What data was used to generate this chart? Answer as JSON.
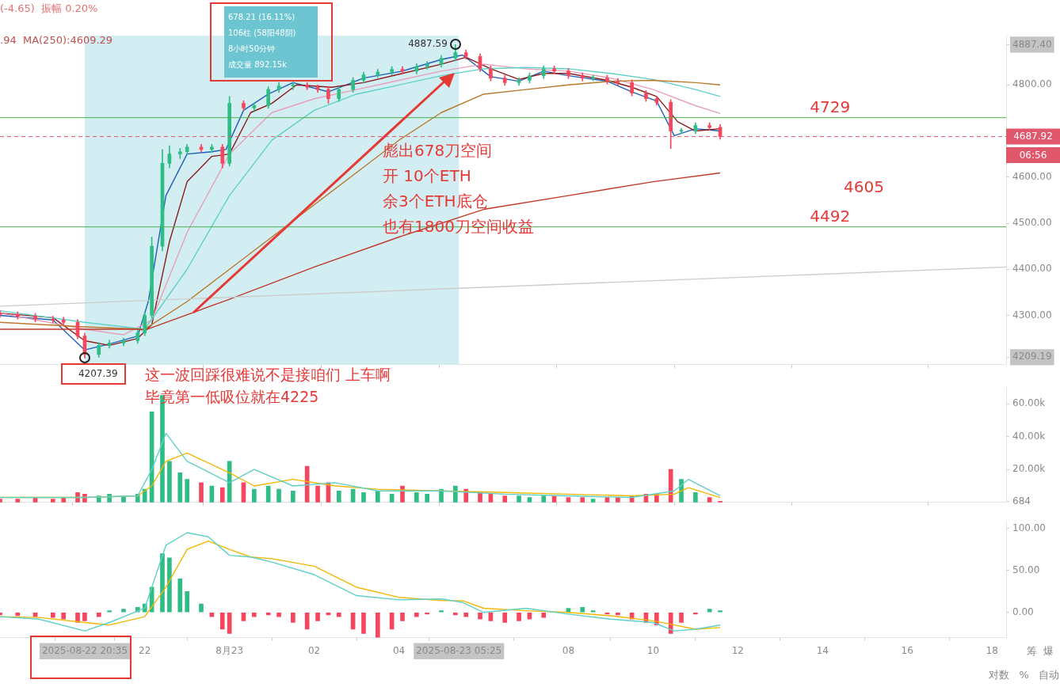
{
  "chart_data": [
    {
      "type": "candlestick",
      "xlim": [
        "2025-08-22T18:35",
        "2025-08-23T18:20"
      ],
      "ylim": [
        4193,
        4907
      ],
      "tick_labels": "y",
      "grid": false,
      "legend": false,
      "yticks": [
        {
          "value": 4209.19,
          "label": "4209.19"
        },
        {
          "value": 4300,
          "label": "4300.00"
        },
        {
          "value": 4400,
          "label": "4400.00"
        },
        {
          "value": 4500,
          "label": "4500.00"
        },
        {
          "value": 4600,
          "label": "4600.00"
        },
        {
          "value": 4800,
          "label": "4800.00"
        },
        {
          "value": 4887.4,
          "label": "4887.40"
        }
      ],
      "x": [
        "2025-08-22T18:35",
        "2025-08-22T19:00",
        "2025-08-22T19:25",
        "2025-08-22T19:50",
        "2025-08-22T20:05",
        "2025-08-22T20:25",
        "2025-08-22T20:35",
        "2025-08-22T20:55",
        "2025-08-22T21:10",
        "2025-08-22T21:30",
        "2025-08-22T21:50",
        "2025-08-22T22:00",
        "2025-08-22T22:10",
        "2025-08-22T22:25",
        "2025-08-22T22:35",
        "2025-08-22T22:50",
        "2025-08-22T23:00",
        "2025-08-22T23:20",
        "2025-08-22T23:35",
        "2025-08-22T23:50",
        "2025-08-23T00:00",
        "2025-08-23T00:20",
        "2025-08-23T00:35",
        "2025-08-23T00:55",
        "2025-08-23T01:10",
        "2025-08-23T01:30",
        "2025-08-23T01:50",
        "2025-08-23T02:05",
        "2025-08-23T02:20",
        "2025-08-23T02:35",
        "2025-08-23T02:55",
        "2025-08-23T03:10",
        "2025-08-23T03:30",
        "2025-08-23T03:50",
        "2025-08-23T04:05",
        "2025-08-23T04:25",
        "2025-08-23T04:40",
        "2025-08-23T05:00",
        "2025-08-23T05:20",
        "2025-08-23T05:35",
        "2025-08-23T05:55",
        "2025-08-23T06:10",
        "2025-08-23T06:30",
        "2025-08-23T06:50",
        "2025-08-23T07:05",
        "2025-08-23T07:25",
        "2025-08-23T07:40",
        "2025-08-23T08:00",
        "2025-08-23T08:20",
        "2025-08-23T08:35",
        "2025-08-23T08:55",
        "2025-08-23T09:10",
        "2025-08-23T09:30",
        "2025-08-23T09:50",
        "2025-08-23T10:05",
        "2025-08-23T10:25",
        "2025-08-23T10:40",
        "2025-08-23T11:00",
        "2025-08-23T11:20",
        "2025-08-23T11:35"
      ],
      "ohlc": [
        [
          4305,
          4311,
          4296,
          4302
        ],
        [
          4302,
          4308,
          4292,
          4298
        ],
        [
          4298,
          4304,
          4286,
          4292
        ],
        [
          4292,
          4298,
          4284,
          4290
        ],
        [
          4290,
          4296,
          4279,
          4285
        ],
        [
          4285,
          4291,
          4249,
          4255
        ],
        [
          4255,
          4261,
          4207.39,
          4215
        ],
        [
          4215,
          4241,
          4209,
          4235
        ],
        [
          4235,
          4246,
          4229,
          4240
        ],
        [
          4240,
          4251,
          4234,
          4245
        ],
        [
          4245,
          4268,
          4239,
          4262
        ],
        [
          4262,
          4306,
          4256,
          4300
        ],
        [
          4300,
          4470,
          4294,
          4450
        ],
        [
          4450,
          4660,
          4440,
          4630
        ],
        [
          4630,
          4668,
          4620,
          4650
        ],
        [
          4650,
          4662,
          4640,
          4655
        ],
        [
          4655,
          4671,
          4649,
          4665
        ],
        [
          4665,
          4671,
          4654,
          4660
        ],
        [
          4660,
          4671,
          4654,
          4665
        ],
        [
          4665,
          4671,
          4620,
          4630
        ],
        [
          4630,
          4775,
          4624,
          4760
        ],
        [
          4760,
          4766,
          4744,
          4750
        ],
        [
          4750,
          4761,
          4744,
          4755
        ],
        [
          4755,
          4796,
          4749,
          4790
        ],
        [
          4790,
          4805,
          4784,
          4798
        ],
        [
          4798,
          4806,
          4790,
          4800
        ],
        [
          4800,
          4805,
          4790,
          4795
        ],
        [
          4795,
          4800,
          4784,
          4790
        ],
        [
          4790,
          4796,
          4760,
          4770
        ],
        [
          4770,
          4796,
          4764,
          4790
        ],
        [
          4790,
          4816,
          4784,
          4810
        ],
        [
          4810,
          4828,
          4804,
          4822
        ],
        [
          4822,
          4834,
          4816,
          4828
        ],
        [
          4828,
          4840,
          4822,
          4834
        ],
        [
          4834,
          4840,
          4824,
          4830
        ],
        [
          4830,
          4846,
          4824,
          4840
        ],
        [
          4840,
          4851,
          4834,
          4845
        ],
        [
          4845,
          4864,
          4839,
          4858
        ],
        [
          4858,
          4887.59,
          4852,
          4870
        ],
        [
          4870,
          4876,
          4856,
          4862
        ],
        [
          4862,
          4868,
          4829,
          4835
        ],
        [
          4835,
          4841,
          4809,
          4815
        ],
        [
          4815,
          4821,
          4799,
          4805
        ],
        [
          4805,
          4816,
          4799,
          4810
        ],
        [
          4810,
          4826,
          4804,
          4820
        ],
        [
          4820,
          4841,
          4814,
          4835
        ],
        [
          4835,
          4841,
          4824,
          4830
        ],
        [
          4830,
          4836,
          4814,
          4820
        ],
        [
          4820,
          4826,
          4809,
          4815
        ],
        [
          4815,
          4821,
          4809,
          4815
        ],
        [
          4815,
          4821,
          4802,
          4808
        ],
        [
          4808,
          4814,
          4799,
          4805
        ],
        [
          4805,
          4811,
          4776,
          4782
        ],
        [
          4782,
          4788,
          4764,
          4770
        ],
        [
          4770,
          4776,
          4756,
          4762
        ],
        [
          4762,
          4768,
          4662,
          4700
        ],
        [
          4700,
          4706,
          4694,
          4700
        ],
        [
          4700,
          4718,
          4694,
          4712
        ],
        [
          4712,
          4718,
          4702,
          4708
        ],
        [
          4708,
          4714,
          4682,
          4688
        ]
      ],
      "colors": [
        "#f6465d",
        "#f6465d",
        "#f6465d",
        "#f6465d",
        "#f6465d",
        "#f6465d",
        "#f6465d",
        "#2ebd85",
        "#2ebd85",
        "#2ebd85",
        "#2ebd85",
        "#2ebd85",
        "#2ebd85",
        "#2ebd85",
        "#2ebd85",
        "#2ebd85",
        "#2ebd85",
        "#f6465d",
        "#2ebd85",
        "#f6465d",
        "#2ebd85",
        "#f6465d",
        "#2ebd85",
        "#2ebd85",
        "#2ebd85",
        "#2ebd85",
        "#f6465d",
        "#f6465d",
        "#f6465d",
        "#2ebd85",
        "#2ebd85",
        "#2ebd85",
        "#2ebd85",
        "#2ebd85",
        "#f6465d",
        "#2ebd85",
        "#2ebd85",
        "#2ebd85",
        "#2ebd85",
        "#f6465d",
        "#f6465d",
        "#f6465d",
        "#f6465d",
        "#2ebd85",
        "#2ebd85",
        "#2ebd85",
        "#f6465d",
        "#f6465d",
        "#f6465d",
        "#2ebd85",
        "#f6465d",
        "#f6465d",
        "#f6465d",
        "#f6465d",
        "#f6465d",
        "#f6465d",
        "#2ebd85",
        "#2ebd85",
        "#f6465d",
        "#f6465d"
      ],
      "series": [
        {
          "type": "line",
          "color": "#cccccc",
          "x": [
            "2025-08-22T18:35",
            "2025-08-23T18:20"
          ],
          "values": [
            4320,
            4405
          ]
        },
        {
          "type": "line",
          "color": "#c0392b",
          "x": [
            "2025-08-22T18:35",
            "2025-08-22T21:50",
            "2025-08-22T22:00",
            "2025-08-23T00:00",
            "2025-08-23T02:00",
            "2025-08-23T04:00",
            "2025-08-23T06:00",
            "2025-08-23T08:00",
            "2025-08-23T10:00",
            "2025-08-23T11:35"
          ],
          "values": [
            4270,
            4270,
            4268,
            4335,
            4405,
            4470,
            4530,
            4560,
            4590,
            4609
          ]
        },
        {
          "type": "line",
          "color": "#b8792a",
          "x": [
            "2025-08-22T18:35",
            "2025-08-22T20:35",
            "2025-08-22T22:00",
            "2025-08-22T23:00",
            "2025-08-23T00:00",
            "2025-08-23T01:00",
            "2025-08-23T02:00",
            "2025-08-23T03:00",
            "2025-08-23T04:00",
            "2025-08-23T05:00",
            "2025-08-23T06:00",
            "2025-08-23T07:00",
            "2025-08-23T08:00",
            "2025-08-23T09:00",
            "2025-08-23T10:00",
            "2025-08-23T11:00",
            "2025-08-23T11:35"
          ],
          "values": [
            4285,
            4275,
            4270,
            4330,
            4400,
            4470,
            4540,
            4610,
            4680,
            4740,
            4780,
            4790,
            4800,
            4808,
            4810,
            4805,
            4800
          ]
        },
        {
          "type": "line",
          "color": "#5fd0c8",
          "x": [
            "2025-08-22T18:35",
            "2025-08-22T20:35",
            "2025-08-22T22:00",
            "2025-08-22T23:00",
            "2025-08-23T00:00",
            "2025-08-23T01:00",
            "2025-08-23T02:00",
            "2025-08-23T03:00",
            "2025-08-23T04:00",
            "2025-08-23T05:00",
            "2025-08-23T06:00",
            "2025-08-23T07:00",
            "2025-08-23T08:00",
            "2025-08-23T09:00",
            "2025-08-23T10:00",
            "2025-08-23T11:00",
            "2025-08-23T11:35"
          ],
          "values": [
            4310,
            4285,
            4270,
            4400,
            4560,
            4680,
            4745,
            4780,
            4800,
            4820,
            4835,
            4838,
            4835,
            4825,
            4812,
            4790,
            4775
          ]
        },
        {
          "type": "line",
          "color": "#e8a0b8",
          "x": [
            "2025-08-22T18:35",
            "2025-08-22T20:35",
            "2025-08-22T21:30",
            "2025-08-22T22:10",
            "2025-08-22T23:00",
            "2025-08-23T00:00",
            "2025-08-23T01:00",
            "2025-08-23T02:00",
            "2025-08-23T03:00",
            "2025-08-23T04:00",
            "2025-08-23T05:00",
            "2025-08-23T06:00",
            "2025-08-23T07:00",
            "2025-08-23T08:00",
            "2025-08-23T09:00",
            "2025-08-23T10:00",
            "2025-08-23T11:00",
            "2025-08-23T11:35"
          ],
          "values": [
            4305,
            4270,
            4258,
            4290,
            4480,
            4650,
            4740,
            4770,
            4790,
            4810,
            4830,
            4845,
            4835,
            4830,
            4815,
            4790,
            4755,
            4738
          ]
        },
        {
          "type": "line",
          "color": "#8b1a1a",
          "x": [
            "2025-08-22T18:35",
            "2025-08-22T19:50",
            "2025-08-22T20:35",
            "2025-08-22T21:10",
            "2025-08-22T21:50",
            "2025-08-22T22:10",
            "2025-08-22T22:35",
            "2025-08-22T23:00",
            "2025-08-22T23:35",
            "2025-08-23T00:00",
            "2025-08-23T00:30",
            "2025-08-23T01:00",
            "2025-08-23T01:35",
            "2025-08-23T02:25",
            "2025-08-23T03:10",
            "2025-08-23T04:05",
            "2025-08-23T05:00",
            "2025-08-23T05:35",
            "2025-08-23T06:10",
            "2025-08-23T06:50",
            "2025-08-23T07:25",
            "2025-08-23T08:00",
            "2025-08-23T08:55",
            "2025-08-23T09:30",
            "2025-08-23T10:05",
            "2025-08-23T10:35",
            "2025-08-23T11:00",
            "2025-08-23T11:35"
          ],
          "values": [
            4305,
            4295,
            4245,
            4235,
            4250,
            4280,
            4460,
            4590,
            4645,
            4650,
            4740,
            4760,
            4800,
            4795,
            4805,
            4825,
            4845,
            4860,
            4835,
            4812,
            4825,
            4825,
            4810,
            4795,
            4775,
            4720,
            4700,
            4705
          ]
        },
        {
          "type": "line",
          "color": "#1f5fbf",
          "x": [
            "2025-08-22T18:35",
            "2025-08-22T19:50",
            "2025-08-22T20:35",
            "2025-08-22T21:10",
            "2025-08-22T21:50",
            "2025-08-22T22:05",
            "2025-08-22T22:30",
            "2025-08-22T23:00",
            "2025-08-22T23:35",
            "2025-08-22T23:55",
            "2025-08-23T00:20",
            "2025-08-23T00:55",
            "2025-08-23T01:30",
            "2025-08-23T02:20",
            "2025-08-23T03:10",
            "2025-08-23T04:05",
            "2025-08-23T05:00",
            "2025-08-23T05:30",
            "2025-08-23T06:10",
            "2025-08-23T06:50",
            "2025-08-23T07:25",
            "2025-08-23T08:00",
            "2025-08-23T08:55",
            "2025-08-23T09:30",
            "2025-08-23T10:05",
            "2025-08-23T10:30",
            "2025-08-23T11:00",
            "2025-08-23T11:35"
          ],
          "values": [
            4300,
            4290,
            4225,
            4238,
            4255,
            4330,
            4560,
            4650,
            4655,
            4660,
            4745,
            4780,
            4805,
            4785,
            4815,
            4830,
            4855,
            4865,
            4818,
            4808,
            4830,
            4820,
            4808,
            4785,
            4765,
            4690,
            4705,
            4700
          ]
        }
      ],
      "bands": [
        {
          "axis": "x",
          "from": "2025-08-22T20:35",
          "to": "2025-08-23T05:25",
          "color": "#d3eef2"
        }
      ],
      "ref_lines": [
        {
          "axis": "y",
          "value": 4729,
          "label": "4729",
          "color": "#4caf50",
          "line_style": "solid"
        },
        {
          "axis": "y",
          "value": 4492,
          "label": "4492",
          "color": "#4caf50",
          "line_style": "solid"
        },
        {
          "axis": "y",
          "value": 4687.92,
          "label": "4687.92",
          "color": "#e0566a",
          "line_style": "dashed"
        }
      ],
      "annotations": [
        "(-4.65)  振幅 0.20%",
        ".94  MA(250):4609.29",
        "678.21 (16.11%)",
        "106柱 (58阳48阴)",
        "8小时50分钟",
        "成交量 892.15k",
        "彪出678刀空间",
        "开 10个ETH",
        "余3个ETH底仓",
        "也有1800刀空间收益",
        "这一波回踩很难说不是接咱们 上车啊",
        "毕竟第一低吸位就在4225",
        {
          "text": "4207.39",
          "x": "2025-08-22T20:35",
          "y": 4207.39
        },
        {
          "text": "4887.59",
          "x": "2025-08-23T05:20",
          "y": 4887.59
        },
        "4605",
        "06:56"
      ]
    },
    {
      "type": "bar",
      "xlim": [
        "2025-08-22T18:35",
        "2025-08-23T18:20"
      ],
      "ylim": [
        0,
        70000
      ],
      "tick_labels": "y",
      "grid": false,
      "legend": false,
      "yticks": [
        {
          "value": 684,
          "label": "684"
        },
        {
          "value": 20000,
          "label": "20.00k"
        },
        {
          "value": 40000,
          "label": "40.00k"
        },
        {
          "value": 60000,
          "label": "60.00k"
        }
      ],
      "x": [
        "2025-08-22T18:35",
        "2025-08-22T19:00",
        "2025-08-22T19:25",
        "2025-08-22T19:50",
        "2025-08-22T20:05",
        "2025-08-22T20:25",
        "2025-08-22T20:35",
        "2025-08-22T20:55",
        "2025-08-22T21:10",
        "2025-08-22T21:30",
        "2025-08-22T21:50",
        "2025-08-22T22:00",
        "2025-08-22T22:10",
        "2025-08-22T22:25",
        "2025-08-22T22:35",
        "2025-08-22T22:50",
        "2025-08-22T23:00",
        "2025-08-22T23:20",
        "2025-08-22T23:35",
        "2025-08-22T23:50",
        "2025-08-23T00:00",
        "2025-08-23T00:20",
        "2025-08-23T00:35",
        "2025-08-23T00:55",
        "2025-08-23T01:10",
        "2025-08-23T01:30",
        "2025-08-23T01:50",
        "2025-08-23T02:05",
        "2025-08-23T02:20",
        "2025-08-23T02:35",
        "2025-08-23T02:55",
        "2025-08-23T03:10",
        "2025-08-23T03:30",
        "2025-08-23T03:50",
        "2025-08-23T04:05",
        "2025-08-23T04:25",
        "2025-08-23T04:40",
        "2025-08-23T05:00",
        "2025-08-23T05:20",
        "2025-08-23T05:35",
        "2025-08-23T05:55",
        "2025-08-23T06:10",
        "2025-08-23T06:30",
        "2025-08-23T06:50",
        "2025-08-23T07:05",
        "2025-08-23T07:25",
        "2025-08-23T07:40",
        "2025-08-23T08:00",
        "2025-08-23T08:20",
        "2025-08-23T08:35",
        "2025-08-23T08:55",
        "2025-08-23T09:10",
        "2025-08-23T09:30",
        "2025-08-23T09:50",
        "2025-08-23T10:05",
        "2025-08-23T10:25",
        "2025-08-23T10:40",
        "2025-08-23T11:00",
        "2025-08-23T11:20",
        "2025-08-23T11:35"
      ],
      "series": [
        {
          "values": [
            2000,
            2000,
            3000,
            2000,
            3000,
            6000,
            5000,
            4000,
            5000,
            4000,
            5000,
            8000,
            55000,
            65000,
            25000,
            18000,
            14000,
            12000,
            10000,
            9000,
            25000,
            12000,
            8000,
            10000,
            8000,
            7000,
            22000,
            10000,
            12000,
            7000,
            8000,
            6000,
            7000,
            5000,
            10000,
            6000,
            5000,
            8000,
            10000,
            8000,
            6000,
            5000,
            4000,
            4000,
            3000,
            4000,
            4000,
            3000,
            3000,
            2000,
            3000,
            3000,
            4000,
            5000,
            5000,
            20000,
            14000,
            6000,
            3000,
            684
          ],
          "colors": [
            "#f6465d",
            "#f6465d",
            "#f6465d",
            "#f6465d",
            "#f6465d",
            "#f6465d",
            "#f6465d",
            "#2ebd85",
            "#2ebd85",
            "#2ebd85",
            "#2ebd85",
            "#2ebd85",
            "#2ebd85",
            "#2ebd85",
            "#2ebd85",
            "#2ebd85",
            "#2ebd85",
            "#f6465d",
            "#2ebd85",
            "#f6465d",
            "#2ebd85",
            "#f6465d",
            "#2ebd85",
            "#2ebd85",
            "#2ebd85",
            "#2ebd85",
            "#f6465d",
            "#f6465d",
            "#f6465d",
            "#2ebd85",
            "#2ebd85",
            "#2ebd85",
            "#2ebd85",
            "#2ebd85",
            "#f6465d",
            "#2ebd85",
            "#2ebd85",
            "#2ebd85",
            "#2ebd85",
            "#f6465d",
            "#f6465d",
            "#f6465d",
            "#f6465d",
            "#2ebd85",
            "#2ebd85",
            "#2ebd85",
            "#f6465d",
            "#f6465d",
            "#f6465d",
            "#2ebd85",
            "#f6465d",
            "#f6465d",
            "#f6465d",
            "#f6465d",
            "#f6465d",
            "#f6465d",
            "#2ebd85",
            "#2ebd85",
            "#f6465d",
            "#f6465d"
          ]
        },
        {
          "type": "line",
          "color": "#5fd0c8",
          "x": [
            "2025-08-22T18:35",
            "2025-08-22T20:35",
            "2025-08-22T21:50",
            "2025-08-22T22:10",
            "2025-08-22T22:30",
            "2025-08-22T23:00",
            "2025-08-23T00:00",
            "2025-08-23T00:35",
            "2025-08-23T01:30",
            "2025-08-23T02:30",
            "2025-08-23T03:30",
            "2025-08-23T05:00",
            "2025-08-23T06:30",
            "2025-08-23T08:00",
            "2025-08-23T09:30",
            "2025-08-23T10:30",
            "2025-08-23T10:50",
            "2025-08-23T11:35"
          ],
          "values": [
            3000,
            3000,
            4000,
            20000,
            42000,
            25000,
            12000,
            20000,
            10000,
            12000,
            7000,
            7000,
            5000,
            4000,
            3000,
            7000,
            14000,
            4000
          ]
        },
        {
          "type": "line",
          "color": "#f2b705",
          "x": [
            "2025-08-22T18:35",
            "2025-08-22T20:35",
            "2025-08-22T21:50",
            "2025-08-22T22:10",
            "2025-08-22T22:30",
            "2025-08-22T23:00",
            "2025-08-23T00:00",
            "2025-08-23T00:35",
            "2025-08-23T01:30",
            "2025-08-23T02:30",
            "2025-08-23T03:30",
            "2025-08-23T05:00",
            "2025-08-23T06:30",
            "2025-08-23T08:00",
            "2025-08-23T09:30",
            "2025-08-23T10:30",
            "2025-08-23T10:50",
            "2025-08-23T11:35"
          ],
          "values": [
            3000,
            3000,
            4000,
            10000,
            25000,
            30000,
            18000,
            10000,
            14000,
            10000,
            8000,
            7000,
            6000,
            5000,
            4000,
            5000,
            9000,
            3000
          ]
        }
      ]
    },
    {
      "type": "bar",
      "xlim": [
        "2025-08-22T18:35",
        "2025-08-23T18:20"
      ],
      "ylim": [
        -30,
        108
      ],
      "grid": false,
      "legend": false,
      "xticks": [
        {
          "value": "2025-08-22T20:35",
          "label": "2025-08-22 20:35"
        },
        {
          "value": "2025-08-22T22:00",
          "label": "22"
        },
        {
          "value": "2025-08-23T00:00",
          "label": "8月23"
        },
        {
          "value": "2025-08-23T02:00",
          "label": "02"
        },
        {
          "value": "2025-08-23T04:00",
          "label": "04"
        },
        {
          "value": "2025-08-23T05:25",
          "label": "2025-08-23 05:25"
        },
        {
          "value": "2025-08-23T08:00",
          "label": "08"
        },
        {
          "value": "2025-08-23T10:00",
          "label": "10"
        },
        {
          "value": "2025-08-23T12:00",
          "label": "12"
        },
        {
          "value": "2025-08-23T14:00",
          "label": "14"
        },
        {
          "value": "2025-08-23T16:00",
          "label": "16"
        },
        {
          "value": "2025-08-23T18:00",
          "label": "18"
        }
      ],
      "yticks": [
        {
          "value": 0,
          "label": "0.00"
        },
        {
          "value": 50,
          "label": "50.00"
        },
        {
          "value": 100,
          "label": "100.00"
        }
      ],
      "x": [
        "2025-08-22T18:35",
        "2025-08-22T19:00",
        "2025-08-22T19:25",
        "2025-08-22T19:50",
        "2025-08-22T20:05",
        "2025-08-22T20:25",
        "2025-08-22T20:35",
        "2025-08-22T20:55",
        "2025-08-22T21:10",
        "2025-08-22T21:30",
        "2025-08-22T21:50",
        "2025-08-22T22:00",
        "2025-08-22T22:10",
        "2025-08-22T22:25",
        "2025-08-22T22:35",
        "2025-08-22T22:50",
        "2025-08-22T23:00",
        "2025-08-22T23:20",
        "2025-08-22T23:35",
        "2025-08-22T23:50",
        "2025-08-23T00:00",
        "2025-08-23T00:20",
        "2025-08-23T00:35",
        "2025-08-23T00:55",
        "2025-08-23T01:10",
        "2025-08-23T01:30",
        "2025-08-23T01:50",
        "2025-08-23T02:05",
        "2025-08-23T02:20",
        "2025-08-23T02:35",
        "2025-08-23T02:55",
        "2025-08-23T03:10",
        "2025-08-23T03:30",
        "2025-08-23T03:50",
        "2025-08-23T04:05",
        "2025-08-23T04:25",
        "2025-08-23T04:40",
        "2025-08-23T05:00",
        "2025-08-23T05:20",
        "2025-08-23T05:35",
        "2025-08-23T05:55",
        "2025-08-23T06:10",
        "2025-08-23T06:30",
        "2025-08-23T06:50",
        "2025-08-23T07:05",
        "2025-08-23T07:25",
        "2025-08-23T07:40",
        "2025-08-23T08:00",
        "2025-08-23T08:20",
        "2025-08-23T08:35",
        "2025-08-23T08:55",
        "2025-08-23T09:10",
        "2025-08-23T09:30",
        "2025-08-23T09:50",
        "2025-08-23T10:05",
        "2025-08-23T10:25",
        "2025-08-23T10:40",
        "2025-08-23T11:00",
        "2025-08-23T11:20",
        "2025-08-23T11:35"
      ],
      "series": [
        {
          "values": [
            -3,
            -4,
            -5,
            -6,
            -8,
            -12,
            -10,
            -5,
            2,
            4,
            6,
            10,
            30,
            70,
            65,
            40,
            25,
            10,
            -5,
            -20,
            -25,
            -10,
            -5,
            -3,
            -5,
            -12,
            -20,
            -10,
            -3,
            -5,
            -20,
            -25,
            -30,
            -20,
            -10,
            -5,
            -2,
            2,
            -3,
            -5,
            -8,
            -10,
            -12,
            -10,
            -8,
            -6,
            0,
            5,
            6,
            2,
            -2,
            -3,
            -8,
            -12,
            -15,
            -25,
            -12,
            -2,
            4,
            2
          ],
          "colors": [
            "#f6465d",
            "#f6465d",
            "#f6465d",
            "#f6465d",
            "#f6465d",
            "#f6465d",
            "#f6465d",
            "#f6465d",
            "#2ebd85",
            "#2ebd85",
            "#2ebd85",
            "#2ebd85",
            "#2ebd85",
            "#2ebd85",
            "#2ebd85",
            "#2ebd85",
            "#2ebd85",
            "#2ebd85",
            "#f6465d",
            "#f6465d",
            "#f6465d",
            "#f6465d",
            "#f6465d",
            "#f6465d",
            "#f6465d",
            "#f6465d",
            "#f6465d",
            "#f6465d",
            "#f6465d",
            "#f6465d",
            "#f6465d",
            "#f6465d",
            "#f6465d",
            "#f6465d",
            "#f6465d",
            "#f6465d",
            "#f6465d",
            "#2ebd85",
            "#f6465d",
            "#f6465d",
            "#f6465d",
            "#f6465d",
            "#f6465d",
            "#f6465d",
            "#f6465d",
            "#f6465d",
            "#2ebd85",
            "#2ebd85",
            "#2ebd85",
            "#2ebd85",
            "#f6465d",
            "#f6465d",
            "#f6465d",
            "#f6465d",
            "#f6465d",
            "#f6465d",
            "#f6465d",
            "#f6465d",
            "#2ebd85",
            "#2ebd85"
          ]
        },
        {
          "type": "line",
          "color": "#5fd0c8",
          "x": [
            "2025-08-22T18:35",
            "2025-08-22T19:30",
            "2025-08-22T20:35",
            "2025-08-22T21:10",
            "2025-08-22T22:00",
            "2025-08-22T22:30",
            "2025-08-22T23:00",
            "2025-08-22T23:30",
            "2025-08-23T00:00",
            "2025-08-23T00:30",
            "2025-08-23T01:00",
            "2025-08-23T02:00",
            "2025-08-23T03:00",
            "2025-08-23T04:00",
            "2025-08-23T05:00",
            "2025-08-23T05:30",
            "2025-08-23T06:00",
            "2025-08-23T07:00",
            "2025-08-23T08:00",
            "2025-08-23T09:00",
            "2025-08-23T10:00",
            "2025-08-23T10:30",
            "2025-08-23T11:00",
            "2025-08-23T11:35"
          ],
          "values": [
            -5,
            -8,
            -22,
            -12,
            5,
            80,
            95,
            90,
            68,
            66,
            60,
            45,
            20,
            15,
            16,
            12,
            0,
            5,
            -2,
            -8,
            -12,
            -22,
            -20,
            -15
          ]
        },
        {
          "type": "line",
          "color": "#f2b705",
          "x": [
            "2025-08-22T18:35",
            "2025-08-22T19:30",
            "2025-08-22T20:35",
            "2025-08-22T21:10",
            "2025-08-22T22:00",
            "2025-08-22T22:30",
            "2025-08-22T23:00",
            "2025-08-22T23:30",
            "2025-08-23T00:00",
            "2025-08-23T00:30",
            "2025-08-23T01:00",
            "2025-08-23T02:00",
            "2025-08-23T03:00",
            "2025-08-23T04:00",
            "2025-08-23T05:00",
            "2025-08-23T05:30",
            "2025-08-23T06:00",
            "2025-08-23T07:00",
            "2025-08-23T08:00",
            "2025-08-23T09:00",
            "2025-08-23T10:00",
            "2025-08-23T10:30",
            "2025-08-23T11:00",
            "2025-08-23T11:35"
          ],
          "values": [
            -5,
            -6,
            -12,
            -15,
            -5,
            30,
            75,
            85,
            75,
            66,
            64,
            55,
            30,
            18,
            14,
            14,
            5,
            2,
            0,
            -4,
            -10,
            -15,
            -20,
            -18
          ]
        }
      ],
      "annotations": [
        "筹  爆",
        "对数   %   自动"
      ]
    }
  ]
}
